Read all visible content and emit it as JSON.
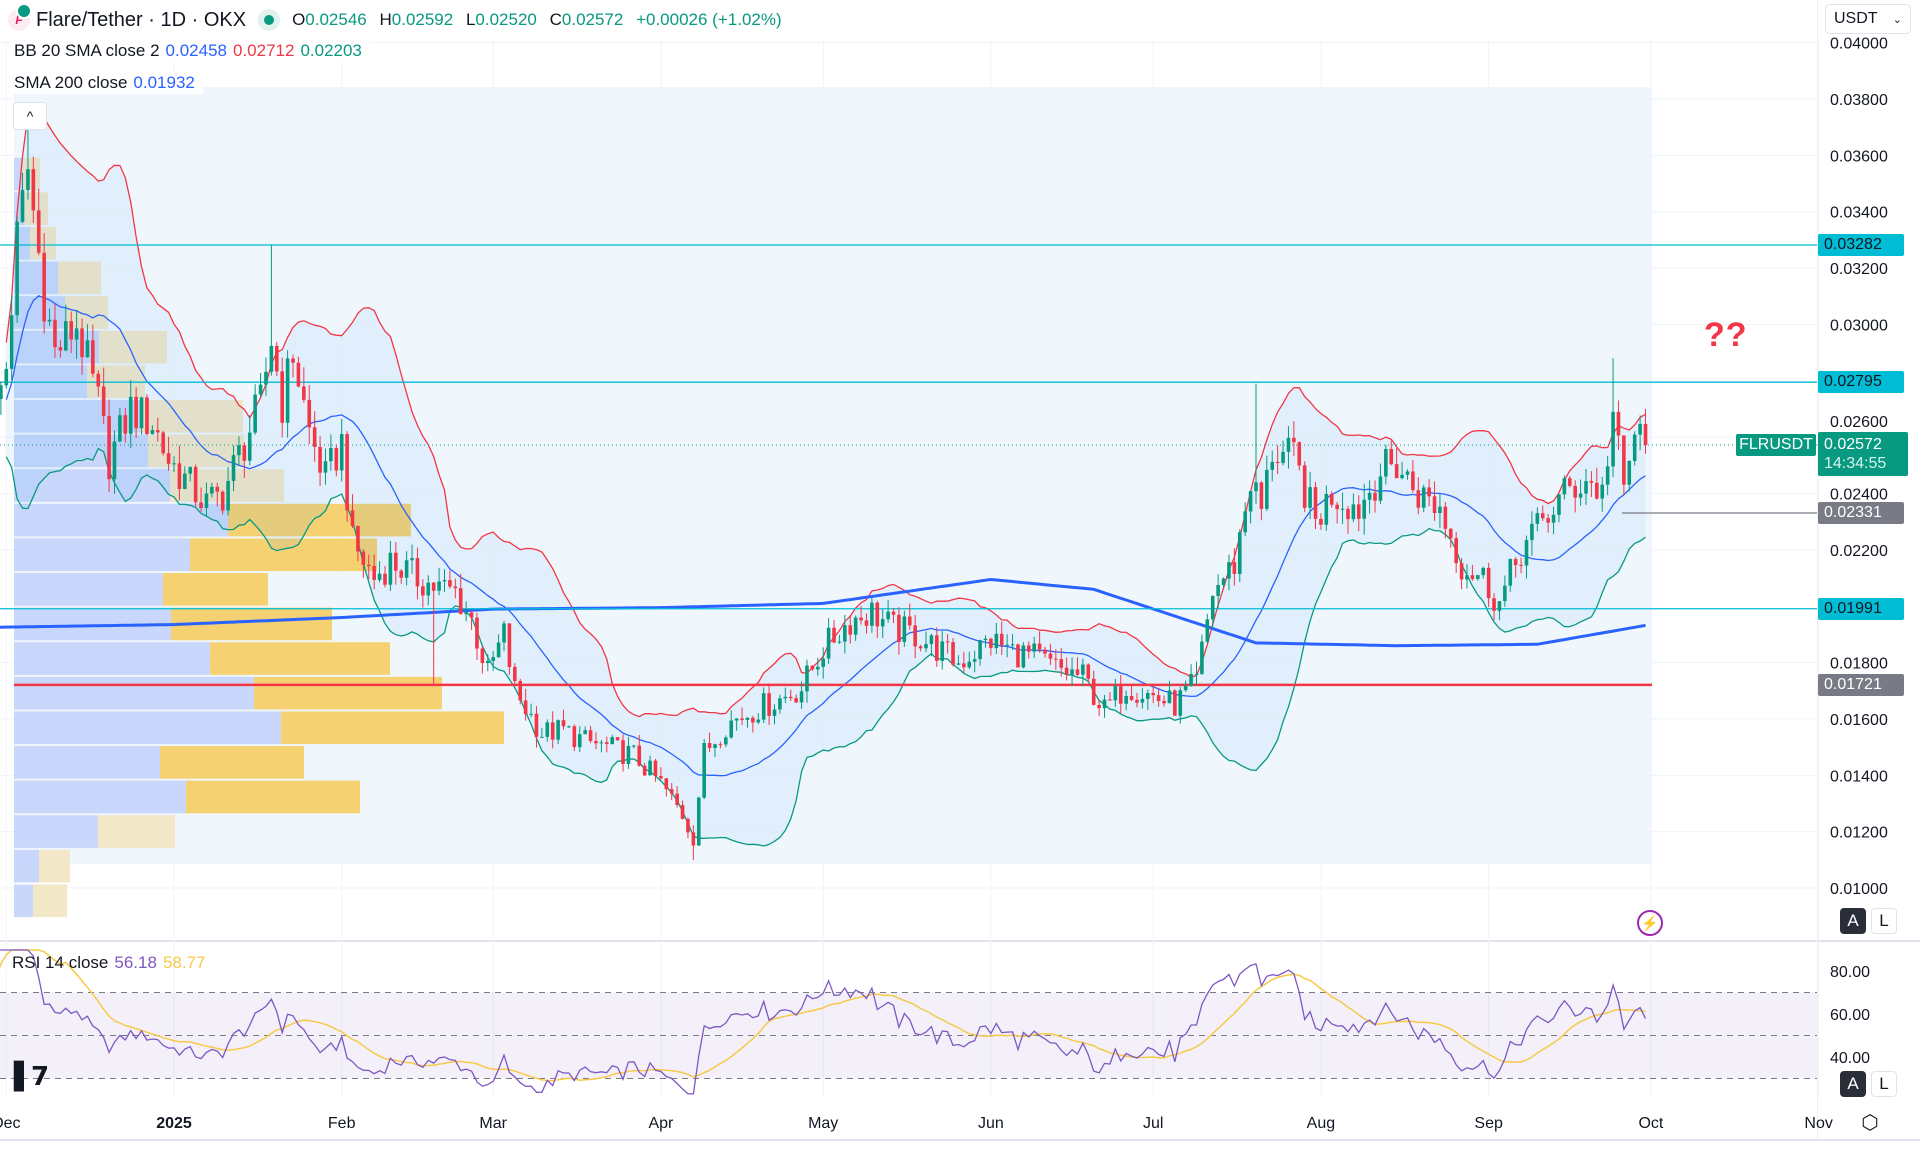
{
  "header": {
    "title": "Flare/Tether · 1D · OKX",
    "ohlc": {
      "o_label": "O",
      "o": "0.02546",
      "h_label": "H",
      "h": "0.02592",
      "l_label": "L",
      "l": "0.02520",
      "c_label": "C",
      "c": "0.02572",
      "change": "+0.00026 (+1.02%)"
    },
    "logo_letter": "F"
  },
  "legend": {
    "bb": {
      "label": "BB 20 SMA close 2",
      "basis": "0.02458",
      "upper": "0.02712",
      "lower": "0.02203"
    },
    "sma": {
      "label": "SMA 200 close",
      "value": "0.01932"
    },
    "rsi": {
      "label": "RSI 14 close",
      "value": "56.18",
      "ma": "58.77"
    }
  },
  "controls": {
    "currency": "USDT",
    "collapse_icon": "^",
    "auto_label": "A",
    "log_label": "L",
    "annotation": "??",
    "symbol": "FLRUSDT",
    "countdown": "14:34:55",
    "tv_logo": "TV"
  },
  "price_labels": {
    "current": "0.02572",
    "levels": [
      {
        "value": "0.03282",
        "kind": "cyan"
      },
      {
        "value": "0.02795",
        "kind": "cyan"
      },
      {
        "value": "0.02331",
        "kind": "gray"
      },
      {
        "value": "0.01991",
        "kind": "cyan"
      },
      {
        "value": "0.01721",
        "kind": "gray"
      }
    ]
  },
  "colors": {
    "up": "#089981",
    "down": "#f23645",
    "bb_basis": "#2962ff",
    "bb_upper": "#f23645",
    "bb_lower": "#089981",
    "sma200": "#2962ff",
    "level": "#00bcd4",
    "support": "#f23645",
    "rsi": "#7e57c2",
    "rsi_ma": "#f7c948",
    "vp_up": "#c3d3fb",
    "vp_value": "#f6cf6a",
    "vp_other": "#f1e6c4"
  },
  "chart_data": {
    "type": "candlestick",
    "title": "Flare/Tether · 1D · OKX",
    "y_ticks": [
      "0.04000",
      "0.03800",
      "0.03600",
      "0.03400",
      "0.03200",
      "0.03000",
      "0.02600",
      "0.02400",
      "0.02200",
      "0.01800",
      "0.01600",
      "0.01400",
      "0.01200",
      "0.01000"
    ],
    "x_ticks": [
      {
        "label": "Dec",
        "date": "2024-12-01"
      },
      {
        "label": "2025",
        "date": "2025-01-01",
        "bold": true
      },
      {
        "label": "Feb",
        "date": "2025-02-01"
      },
      {
        "label": "Mar",
        "date": "2025-03-01"
      },
      {
        "label": "Apr",
        "date": "2025-04-01"
      },
      {
        "label": "May",
        "date": "2025-05-01"
      },
      {
        "label": "Jun",
        "date": "2025-06-01"
      },
      {
        "label": "Jul",
        "date": "2025-07-01"
      },
      {
        "label": "Aug",
        "date": "2025-08-01"
      },
      {
        "label": "Sep",
        "date": "2025-09-01"
      },
      {
        "label": "Oct",
        "date": "2025-10-01"
      },
      {
        "label": "Nov",
        "date": "2025-11-01"
      }
    ],
    "ylim": [
      0.0098,
      0.0404
    ],
    "horizontal_levels": [
      0.03282,
      0.02795,
      0.01991
    ],
    "support_level": 0.01721,
    "gray_level": 0.02331,
    "current_price": 0.02572,
    "close_keypoints": [
      [
        "2024-11-28",
        0.0262
      ],
      [
        "2024-12-01",
        0.0285
      ],
      [
        "2024-12-03",
        0.033
      ],
      [
        "2024-12-05",
        0.0355
      ],
      [
        "2024-12-08",
        0.031
      ],
      [
        "2024-12-10",
        0.029
      ],
      [
        "2024-12-14",
        0.03
      ],
      [
        "2024-12-18",
        0.0272
      ],
      [
        "2024-12-20",
        0.0252
      ],
      [
        "2024-12-24",
        0.027
      ],
      [
        "2024-12-28",
        0.0265
      ],
      [
        "2024-12-31",
        0.0252
      ],
      [
        "2025-01-03",
        0.0245
      ],
      [
        "2025-01-07",
        0.0236
      ],
      [
        "2025-01-10",
        0.024
      ],
      [
        "2025-01-14",
        0.0258
      ],
      [
        "2025-01-17",
        0.0272
      ],
      [
        "2025-01-19",
        0.0295
      ],
      [
        "2025-01-21",
        0.0272
      ],
      [
        "2025-01-23",
        0.029
      ],
      [
        "2025-01-26",
        0.0262
      ],
      [
        "2025-01-29",
        0.0245
      ],
      [
        "2025-02-01",
        0.0258
      ],
      [
        "2025-02-03",
        0.0222
      ],
      [
        "2025-02-07",
        0.021
      ],
      [
        "2025-02-10",
        0.0216
      ],
      [
        "2025-02-14",
        0.0211
      ],
      [
        "2025-02-18",
        0.0207
      ],
      [
        "2025-02-22",
        0.0205
      ],
      [
        "2025-02-25",
        0.0195
      ],
      [
        "2025-02-28",
        0.0176
      ],
      [
        "2025-03-03",
        0.019
      ],
      [
        "2025-03-05",
        0.017
      ],
      [
        "2025-03-10",
        0.0155
      ],
      [
        "2025-03-14",
        0.0156
      ],
      [
        "2025-03-18",
        0.0152
      ],
      [
        "2025-03-22",
        0.015
      ],
      [
        "2025-03-27",
        0.0147
      ],
      [
        "2025-04-01",
        0.0137
      ],
      [
        "2025-04-05",
        0.0126
      ],
      [
        "2025-04-07",
        0.0118
      ],
      [
        "2025-04-09",
        0.0148
      ],
      [
        "2025-04-13",
        0.0158
      ],
      [
        "2025-04-18",
        0.0163
      ],
      [
        "2025-04-23",
        0.0167
      ],
      [
        "2025-04-27",
        0.0171
      ],
      [
        "2025-05-01",
        0.0185
      ],
      [
        "2025-05-06",
        0.0195
      ],
      [
        "2025-05-10",
        0.0198
      ],
      [
        "2025-05-14",
        0.0192
      ],
      [
        "2025-05-18",
        0.019
      ],
      [
        "2025-05-22",
        0.0185
      ],
      [
        "2025-05-26",
        0.018
      ],
      [
        "2025-06-01",
        0.0188
      ],
      [
        "2025-06-05",
        0.0184
      ],
      [
        "2025-06-09",
        0.0182
      ],
      [
        "2025-06-13",
        0.0178
      ],
      [
        "2025-06-18",
        0.0175
      ],
      [
        "2025-06-22",
        0.0163
      ],
      [
        "2025-06-26",
        0.0172
      ],
      [
        "2025-07-01",
        0.0168
      ],
      [
        "2025-07-05",
        0.0165
      ],
      [
        "2025-07-09",
        0.0173
      ],
      [
        "2025-07-12",
        0.0205
      ],
      [
        "2025-07-16",
        0.0215
      ],
      [
        "2025-07-19",
        0.0245
      ],
      [
        "2025-07-21",
        0.0234
      ],
      [
        "2025-07-23",
        0.0255
      ],
      [
        "2025-07-27",
        0.0252
      ],
      [
        "2025-07-31",
        0.023
      ],
      [
        "2025-08-03",
        0.024
      ],
      [
        "2025-08-08",
        0.0235
      ],
      [
        "2025-08-12",
        0.0248
      ],
      [
        "2025-08-15",
        0.025
      ],
      [
        "2025-08-19",
        0.024
      ],
      [
        "2025-08-23",
        0.0235
      ],
      [
        "2025-08-27",
        0.0215
      ],
      [
        "2025-08-31",
        0.021
      ],
      [
        "2025-09-03",
        0.0201
      ],
      [
        "2025-09-07",
        0.022
      ],
      [
        "2025-09-11",
        0.023
      ],
      [
        "2025-09-15",
        0.024
      ],
      [
        "2025-09-19",
        0.0245
      ],
      [
        "2025-09-22",
        0.024
      ],
      [
        "2025-09-24",
        0.0268
      ],
      [
        "2025-09-26",
        0.024
      ],
      [
        "2025-09-28",
        0.0262
      ],
      [
        "2025-09-30",
        0.0257
      ]
    ],
    "wick_highs": [
      [
        "2024-12-05",
        0.0372
      ],
      [
        "2025-01-19",
        0.0328
      ],
      [
        "2025-07-20",
        0.0279
      ],
      [
        "2025-09-24",
        0.0288
      ]
    ],
    "wick_lows": [
      [
        "2025-04-07",
        0.011
      ],
      [
        "2025-02-18",
        0.0172
      ]
    ],
    "sma200_keypoints": [
      [
        "2024-11-28",
        0.01925
      ],
      [
        "2025-01-01",
        0.01935
      ],
      [
        "2025-02-01",
        0.0196
      ],
      [
        "2025-03-01",
        0.0199
      ],
      [
        "2025-04-01",
        0.01995
      ],
      [
        "2025-05-01",
        0.0201
      ],
      [
        "2025-06-01",
        0.02095
      ],
      [
        "2025-06-20",
        0.0206
      ],
      [
        "2025-07-20",
        0.0187
      ],
      [
        "2025-08-15",
        0.0186
      ],
      [
        "2025-09-10",
        0.01865
      ],
      [
        "2025-09-30",
        0.01932
      ]
    ],
    "volume_profile": {
      "top_price": 0.03595,
      "bin_size": 0.001228,
      "value_area_rows": [
        10,
        18
      ],
      "rows": [
        [
          8,
          18
        ],
        [
          10,
          24
        ],
        [
          16,
          26
        ],
        [
          44,
          43
        ],
        [
          51,
          43
        ],
        [
          85,
          68
        ],
        [
          73,
          58
        ],
        [
          126,
          103
        ],
        [
          134,
          96
        ],
        [
          156,
          114
        ],
        [
          214,
          183
        ],
        [
          176,
          187
        ],
        [
          149,
          105
        ],
        [
          157,
          161
        ],
        [
          196,
          180
        ],
        [
          240,
          188
        ],
        [
          267,
          223
        ],
        [
          146,
          144
        ],
        [
          172,
          174
        ],
        [
          84,
          77
        ],
        [
          25,
          31
        ],
        [
          19,
          34
        ]
      ]
    },
    "rsi": {
      "period": 14,
      "ma_period": 14,
      "y_ticks": [
        "80.00",
        "60.00",
        "40.00"
      ],
      "bands": [
        70,
        50,
        30
      ],
      "ylim": [
        20,
        90
      ]
    }
  }
}
